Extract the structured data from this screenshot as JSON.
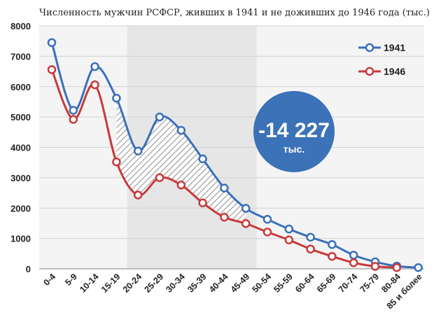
{
  "chart_data": {
    "type": "line",
    "title": "Численность мужчин РСФСР, живших в 1941 и не доживших до 1946 года (тыс.)",
    "categories": [
      "0-4",
      "5-9",
      "10-14",
      "15-19",
      "20-24",
      "25-29",
      "30-34",
      "35-39",
      "40-44",
      "45-49",
      "50-54",
      "55-59",
      "60-64",
      "65-69",
      "70-74",
      "75-79",
      "80-84",
      "85 и более"
    ],
    "series": [
      {
        "name": "1941",
        "color": "#3a6fba",
        "values": [
          7450,
          5220,
          6660,
          5620,
          3880,
          5000,
          4560,
          3620,
          2660,
          1990,
          1630,
          1310,
          1040,
          800,
          450,
          230,
          90,
          40
        ]
      },
      {
        "name": "1946",
        "color": "#c8393b",
        "values": [
          6560,
          4920,
          6060,
          3520,
          2430,
          3000,
          2760,
          2170,
          1700,
          1490,
          1210,
          950,
          650,
          410,
          200,
          80,
          40,
          null
        ]
      }
    ],
    "ylim": [
      0,
      8000
    ],
    "yticks": [
      0,
      1000,
      2000,
      3000,
      4000,
      5000,
      6000,
      7000,
      8000
    ],
    "grid": true,
    "legend": "top-right",
    "highlight": {
      "from": "15-19",
      "to": "45-49",
      "color": "#e6e6e6"
    },
    "annotation": {
      "value": "-14 227",
      "unit": "тыс.",
      "color": "#3b72b8"
    }
  }
}
